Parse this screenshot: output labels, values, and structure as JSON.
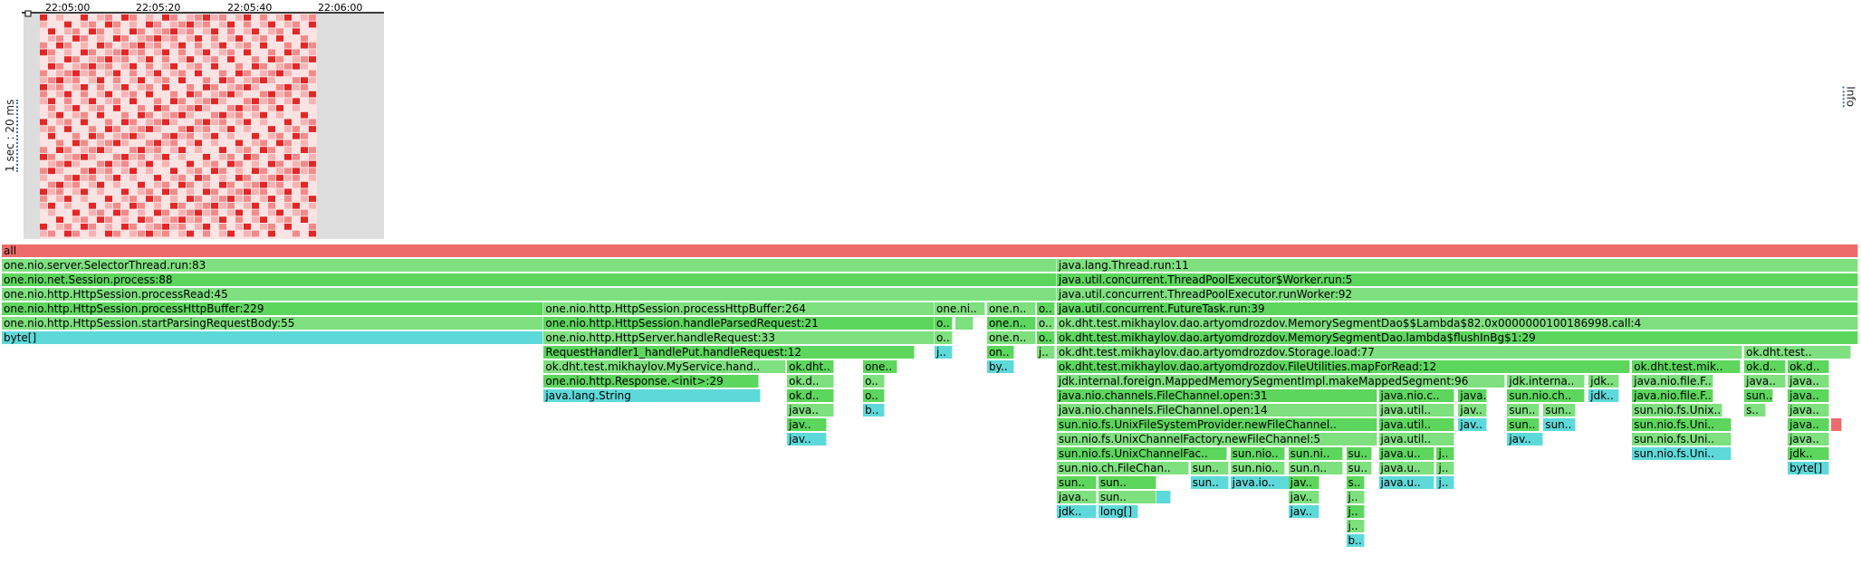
{
  "timeline": {
    "tick_labels": [
      "22:05:00",
      "22:05:20",
      "22:05:40",
      "22:06:00"
    ],
    "y_label": "1 sec : 20 ms",
    "info_label": "Info"
  },
  "colors": {
    "root": "#ee6b6b",
    "java": "#5cd65c",
    "java_light": "#7ee07e",
    "native": "#5ed9d9",
    "hot": "#ee6b6b",
    "heat_dark": "#e32626",
    "heat_light": "#fbe3e3",
    "timeline_bg": "#dddddd"
  },
  "chart_data": {
    "type": "flame_graph",
    "title": "",
    "total_samples": 2052,
    "frames": [
      {
        "d": 0,
        "x": 0,
        "w": 2052,
        "label": "all",
        "t": "root"
      },
      {
        "d": 1,
        "x": 0,
        "w": 1166,
        "label": "one.nio.server.SelectorThread.run:83",
        "t": "java"
      },
      {
        "d": 1,
        "x": 1166,
        "w": 886,
        "label": "java.lang.Thread.run:11",
        "t": "java"
      },
      {
        "d": 2,
        "x": 0,
        "w": 1166,
        "label": "one.nio.net.Session.process:88",
        "t": "java"
      },
      {
        "d": 2,
        "x": 1166,
        "w": 886,
        "label": "java.util.concurrent.ThreadPoolExecutor$Worker.run:5",
        "t": "java"
      },
      {
        "d": 3,
        "x": 0,
        "w": 1166,
        "label": "one.nio.http.HttpSession.processRead:45",
        "t": "java"
      },
      {
        "d": 3,
        "x": 1166,
        "w": 886,
        "label": "java.util.concurrent.ThreadPoolExecutor.runWorker:92",
        "t": "java"
      },
      {
        "d": 4,
        "x": 0,
        "w": 599,
        "label": "one.nio.http.HttpSession.processHttpBuffer:229",
        "t": "java"
      },
      {
        "d": 4,
        "x": 599,
        "w": 432,
        "label": "one.nio.http.HttpSession.processHttpBuffer:264",
        "t": "java"
      },
      {
        "d": 4,
        "x": 1031,
        "w": 56,
        "label": "one.ni..",
        "t": "java"
      },
      {
        "d": 4,
        "x": 1089,
        "w": 54,
        "label": "one.n..",
        "t": "java"
      },
      {
        "d": 4,
        "x": 1144,
        "w": 20,
        "label": "o..",
        "t": "java"
      },
      {
        "d": 4,
        "x": 1166,
        "w": 886,
        "label": "java.util.concurrent.FutureTask.run:39",
        "t": "java"
      },
      {
        "d": 5,
        "x": 0,
        "w": 599,
        "label": "one.nio.http.HttpSession.startParsingRequestBody:55",
        "t": "java"
      },
      {
        "d": 5,
        "x": 599,
        "w": 432,
        "label": "one.nio.http.HttpSession.handleParsedRequest:21",
        "t": "java"
      },
      {
        "d": 5,
        "x": 1031,
        "w": 20,
        "label": "o..",
        "t": "java"
      },
      {
        "d": 5,
        "x": 1054,
        "w": 20,
        "label": "",
        "t": "java"
      },
      {
        "d": 5,
        "x": 1089,
        "w": 54,
        "label": "one.n..",
        "t": "java"
      },
      {
        "d": 5,
        "x": 1144,
        "w": 20,
        "label": "o..",
        "t": "java"
      },
      {
        "d": 5,
        "x": 1166,
        "w": 886,
        "label": "ok.dht.test.mikhaylov.dao.artyomdrozdov.MemorySegmentDao$$Lambda$82.0x0000000100186998.call:4",
        "t": "java"
      },
      {
        "d": 6,
        "x": 0,
        "w": 599,
        "label": "byte[]",
        "t": "native"
      },
      {
        "d": 6,
        "x": 599,
        "w": 432,
        "label": "one.nio.http.HttpServer.handleRequest:33",
        "t": "java"
      },
      {
        "d": 6,
        "x": 1031,
        "w": 20,
        "label": "o..",
        "t": "java"
      },
      {
        "d": 6,
        "x": 1089,
        "w": 54,
        "label": "one.n..",
        "t": "java"
      },
      {
        "d": 6,
        "x": 1144,
        "w": 20,
        "label": "o..",
        "t": "java"
      },
      {
        "d": 6,
        "x": 1166,
        "w": 886,
        "label": "ok.dht.test.mikhaylov.dao.artyomdrozdov.MemorySegmentDao.lambda$flushInBg$1:29",
        "t": "java"
      },
      {
        "d": 7,
        "x": 599,
        "w": 410,
        "label": "RequestHandler1_handlePut.handleRequest:12",
        "t": "java"
      },
      {
        "d": 7,
        "x": 1031,
        "w": 20,
        "label": "j..",
        "t": "native"
      },
      {
        "d": 7,
        "x": 1089,
        "w": 30,
        "label": "on..",
        "t": "java"
      },
      {
        "d": 7,
        "x": 1144,
        "w": 20,
        "label": "j..",
        "t": "java"
      },
      {
        "d": 7,
        "x": 1166,
        "w": 758,
        "label": "ok.dht.test.mikhaylov.dao.artyomdrozdov.Storage.load:77",
        "t": "java"
      },
      {
        "d": 7,
        "x": 1926,
        "w": 118,
        "label": "ok.dht.test..",
        "t": "java"
      },
      {
        "d": 8,
        "x": 599,
        "w": 268,
        "label": "ok.dht.test.mikhaylov.MyService.hand..",
        "t": "java"
      },
      {
        "d": 8,
        "x": 868,
        "w": 52,
        "label": "ok.dht..",
        "t": "java"
      },
      {
        "d": 8,
        "x": 952,
        "w": 38,
        "label": "one..",
        "t": "java"
      },
      {
        "d": 8,
        "x": 1089,
        "w": 30,
        "label": "by..",
        "t": "native"
      },
      {
        "d": 8,
        "x": 1166,
        "w": 634,
        "label": "ok.dht.test.mikhaylov.dao.artyomdrozdov.FileUtilities.mapForRead:12",
        "t": "java"
      },
      {
        "d": 8,
        "x": 1802,
        "w": 120,
        "label": "ok.dht.test.mik..",
        "t": "java"
      },
      {
        "d": 8,
        "x": 1926,
        "w": 46,
        "label": "ok.d..",
        "t": "java"
      },
      {
        "d": 8,
        "x": 1974,
        "w": 46,
        "label": "ok.d..",
        "t": "java"
      },
      {
        "d": 9,
        "x": 599,
        "w": 238,
        "label": "one.nio.http.Response.<init>:29",
        "t": "java"
      },
      {
        "d": 9,
        "x": 868,
        "w": 52,
        "label": "ok.d..",
        "t": "java"
      },
      {
        "d": 9,
        "x": 952,
        "w": 24,
        "label": "o..",
        "t": "java"
      },
      {
        "d": 9,
        "x": 1166,
        "w": 496,
        "label": "jdk.internal.foreign.MappedMemorySegmentImpl.makeMappedSegment:96",
        "t": "java"
      },
      {
        "d": 9,
        "x": 1664,
        "w": 86,
        "label": "jdk.interna..",
        "t": "java"
      },
      {
        "d": 9,
        "x": 1754,
        "w": 34,
        "label": "jdk..",
        "t": "java"
      },
      {
        "d": 9,
        "x": 1802,
        "w": 90,
        "label": "java.nio.file.F..",
        "t": "java"
      },
      {
        "d": 9,
        "x": 1926,
        "w": 46,
        "label": "java..",
        "t": "java"
      },
      {
        "d": 9,
        "x": 1974,
        "w": 46,
        "label": "java..",
        "t": "java"
      },
      {
        "d": 10,
        "x": 599,
        "w": 240,
        "label": "java.lang.String",
        "t": "native"
      },
      {
        "d": 10,
        "x": 868,
        "w": 52,
        "label": "ok.d..",
        "t": "java"
      },
      {
        "d": 10,
        "x": 952,
        "w": 24,
        "label": "o..",
        "t": "java"
      },
      {
        "d": 10,
        "x": 1166,
        "w": 354,
        "label": "java.nio.channels.FileChannel.open:31",
        "t": "java"
      },
      {
        "d": 10,
        "x": 1522,
        "w": 84,
        "label": "java.nio.c..",
        "t": "java"
      },
      {
        "d": 10,
        "x": 1610,
        "w": 32,
        "label": "java..",
        "t": "java"
      },
      {
        "d": 10,
        "x": 1664,
        "w": 86,
        "label": "sun.nio.ch..",
        "t": "java"
      },
      {
        "d": 10,
        "x": 1754,
        "w": 34,
        "label": "jdk..",
        "t": "native"
      },
      {
        "d": 10,
        "x": 1802,
        "w": 90,
        "label": "java.nio.file.F..",
        "t": "java"
      },
      {
        "d": 10,
        "x": 1926,
        "w": 32,
        "label": "sun..",
        "t": "java"
      },
      {
        "d": 10,
        "x": 1974,
        "w": 46,
        "label": "java..",
        "t": "java"
      },
      {
        "d": 11,
        "x": 868,
        "w": 52,
        "label": "java..",
        "t": "java"
      },
      {
        "d": 11,
        "x": 952,
        "w": 24,
        "label": "b..",
        "t": "native"
      },
      {
        "d": 11,
        "x": 1166,
        "w": 354,
        "label": "java.nio.channels.FileChannel.open:14",
        "t": "java"
      },
      {
        "d": 11,
        "x": 1522,
        "w": 84,
        "label": "java.util..",
        "t": "java"
      },
      {
        "d": 11,
        "x": 1610,
        "w": 32,
        "label": "jav..",
        "t": "java"
      },
      {
        "d": 11,
        "x": 1664,
        "w": 36,
        "label": "sun..",
        "t": "java"
      },
      {
        "d": 11,
        "x": 1704,
        "w": 36,
        "label": "sun..",
        "t": "java"
      },
      {
        "d": 11,
        "x": 1802,
        "w": 100,
        "label": "sun.nio.fs.Unix..",
        "t": "java"
      },
      {
        "d": 11,
        "x": 1926,
        "w": 24,
        "label": "s..",
        "t": "java"
      },
      {
        "d": 11,
        "x": 1974,
        "w": 46,
        "label": "java..",
        "t": "java"
      },
      {
        "d": 12,
        "x": 868,
        "w": 44,
        "label": "jav..",
        "t": "java"
      },
      {
        "d": 12,
        "x": 1166,
        "w": 354,
        "label": "sun.nio.fs.UnixFileSystemProvider.newFileChannel..",
        "t": "java"
      },
      {
        "d": 12,
        "x": 1522,
        "w": 84,
        "label": "java.util..",
        "t": "java"
      },
      {
        "d": 12,
        "x": 1610,
        "w": 32,
        "label": "jav..",
        "t": "native"
      },
      {
        "d": 12,
        "x": 1664,
        "w": 36,
        "label": "sun..",
        "t": "java"
      },
      {
        "d": 12,
        "x": 1704,
        "w": 36,
        "label": "sun..",
        "t": "native"
      },
      {
        "d": 12,
        "x": 1802,
        "w": 110,
        "label": "sun.nio.fs.Uni..",
        "t": "java"
      },
      {
        "d": 12,
        "x": 1974,
        "w": 46,
        "label": "java..",
        "t": "java"
      },
      {
        "d": 12,
        "x": 2022,
        "w": 12,
        "label": "",
        "t": "hot"
      },
      {
        "d": 13,
        "x": 868,
        "w": 44,
        "label": "jav..",
        "t": "native"
      },
      {
        "d": 13,
        "x": 1166,
        "w": 354,
        "label": "sun.nio.fs.UnixChannelFactory.newFileChannel:5",
        "t": "java"
      },
      {
        "d": 13,
        "x": 1522,
        "w": 84,
        "label": "java.util..",
        "t": "java"
      },
      {
        "d": 13,
        "x": 1664,
        "w": 40,
        "label": "jav..",
        "t": "native"
      },
      {
        "d": 13,
        "x": 1802,
        "w": 110,
        "label": "sun.nio.fs.Uni..",
        "t": "java"
      },
      {
        "d": 13,
        "x": 1974,
        "w": 46,
        "label": "java..",
        "t": "java"
      },
      {
        "d": 14,
        "x": 1166,
        "w": 188,
        "label": "sun.nio.fs.UnixChannelFac..",
        "t": "java"
      },
      {
        "d": 14,
        "x": 1358,
        "w": 60,
        "label": "sun.nio..",
        "t": "java"
      },
      {
        "d": 14,
        "x": 1422,
        "w": 60,
        "label": "sun.ni..",
        "t": "java"
      },
      {
        "d": 14,
        "x": 1486,
        "w": 28,
        "label": "su..",
        "t": "java"
      },
      {
        "d": 14,
        "x": 1522,
        "w": 62,
        "label": "java.u..",
        "t": "java"
      },
      {
        "d": 14,
        "x": 1586,
        "w": 20,
        "label": "j..",
        "t": "java"
      },
      {
        "d": 14,
        "x": 1802,
        "w": 110,
        "label": "sun.nio.fs.Uni..",
        "t": "native"
      },
      {
        "d": 14,
        "x": 1974,
        "w": 46,
        "label": "jdk..",
        "t": "java"
      },
      {
        "d": 15,
        "x": 1166,
        "w": 146,
        "label": "sun.nio.ch.FileChan..",
        "t": "java"
      },
      {
        "d": 15,
        "x": 1314,
        "w": 42,
        "label": "sun..",
        "t": "java"
      },
      {
        "d": 15,
        "x": 1358,
        "w": 60,
        "label": "sun.nio..",
        "t": "java"
      },
      {
        "d": 15,
        "x": 1422,
        "w": 60,
        "label": "sun.n..",
        "t": "java"
      },
      {
        "d": 15,
        "x": 1486,
        "w": 28,
        "label": "su..",
        "t": "java"
      },
      {
        "d": 15,
        "x": 1522,
        "w": 62,
        "label": "java.u..",
        "t": "java"
      },
      {
        "d": 15,
        "x": 1586,
        "w": 20,
        "label": "j..",
        "t": "java"
      },
      {
        "d": 15,
        "x": 1974,
        "w": 46,
        "label": "byte[]",
        "t": "native"
      },
      {
        "d": 16,
        "x": 1166,
        "w": 44,
        "label": "sun..",
        "t": "java"
      },
      {
        "d": 16,
        "x": 1212,
        "w": 64,
        "label": "sun..",
        "t": "java"
      },
      {
        "d": 16,
        "x": 1314,
        "w": 42,
        "label": "sun..",
        "t": "native"
      },
      {
        "d": 16,
        "x": 1358,
        "w": 66,
        "label": "java.io..",
        "t": "native"
      },
      {
        "d": 16,
        "x": 1422,
        "w": 34,
        "label": "jav..",
        "t": "java"
      },
      {
        "d": 16,
        "x": 1486,
        "w": 20,
        "label": "s..",
        "t": "java"
      },
      {
        "d": 16,
        "x": 1522,
        "w": 62,
        "label": "java.u..",
        "t": "native"
      },
      {
        "d": 16,
        "x": 1586,
        "w": 20,
        "label": "j..",
        "t": "native"
      },
      {
        "d": 17,
        "x": 1166,
        "w": 44,
        "label": "java..",
        "t": "java"
      },
      {
        "d": 17,
        "x": 1212,
        "w": 64,
        "label": "sun..",
        "t": "java"
      },
      {
        "d": 17,
        "x": 1276,
        "w": 16,
        "label": "",
        "t": "native"
      },
      {
        "d": 17,
        "x": 1422,
        "w": 34,
        "label": "jav..",
        "t": "java"
      },
      {
        "d": 17,
        "x": 1486,
        "w": 20,
        "label": "j..",
        "t": "java"
      },
      {
        "d": 18,
        "x": 1166,
        "w": 44,
        "label": "jdk..",
        "t": "native"
      },
      {
        "d": 18,
        "x": 1212,
        "w": 44,
        "label": "long[]",
        "t": "native"
      },
      {
        "d": 18,
        "x": 1422,
        "w": 34,
        "label": "jav..",
        "t": "native"
      },
      {
        "d": 18,
        "x": 1486,
        "w": 20,
        "label": "j..",
        "t": "java"
      },
      {
        "d": 19,
        "x": 1486,
        "w": 20,
        "label": "j..",
        "t": "java"
      },
      {
        "d": 20,
        "x": 1486,
        "w": 20,
        "label": "b..",
        "t": "native"
      }
    ]
  }
}
